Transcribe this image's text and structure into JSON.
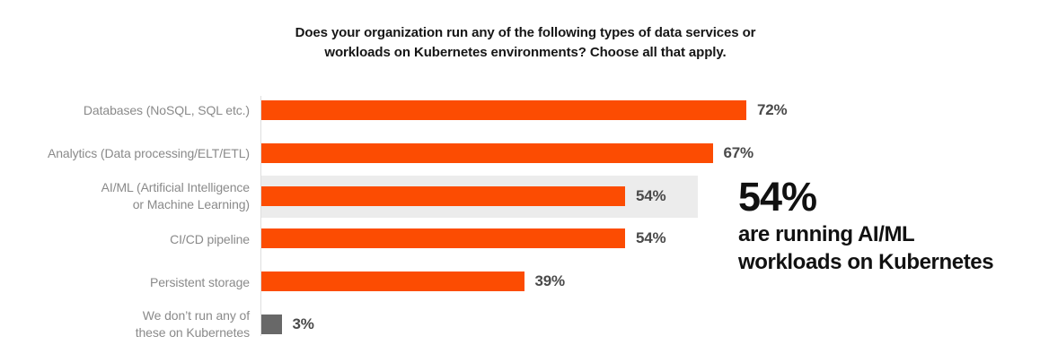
{
  "chart_data": {
    "type": "bar",
    "orientation": "horizontal",
    "title": "Does your organization run any of the following types of data services or workloads on Kubernetes environments? Choose all that apply.",
    "title_lines": [
      "Does your organization run any of the following types of data services or",
      "workloads on Kubernetes environments? Choose all that apply."
    ],
    "categories": [
      "Databases (NoSQL, SQL etc.)",
      "Analytics (Data processing/ELT/ETL)",
      "AI/ML (Artificial Intelligence or Machine Learning)",
      "CI/CD pipeline",
      "Persistent storage",
      "We don’t run any of these on Kubernetes"
    ],
    "label_lines": [
      [
        "Databases (NoSQL, SQL etc.)"
      ],
      [
        "Analytics (Data processing/ELT/ETL)"
      ],
      [
        "AI/ML (Artificial Intelligence",
        "or Machine Learning)"
      ],
      [
        "CI/CD pipeline"
      ],
      [
        "Persistent storage"
      ],
      [
        "We don’t run any of",
        "these on Kubernetes"
      ]
    ],
    "values": [
      72,
      67,
      54,
      54,
      39,
      3
    ],
    "value_labels": [
      "72%",
      "67%",
      "54%",
      "54%",
      "39%",
      "3%"
    ],
    "unit": "%",
    "xlim": [
      0,
      75
    ],
    "grid": false,
    "legend": false,
    "highlighted_index": 2,
    "muted_index": 5,
    "colors": {
      "bar": "#FC4C02",
      "muted_bar": "#686868",
      "highlight_band": "#ECECEC",
      "axis_line": "#DEDEDE",
      "category_label": "#8A8A8A",
      "value_label": "#4A4A4A",
      "title_text": "#161616",
      "callout_text": "#111111"
    }
  },
  "callout": {
    "stat": "54%",
    "description": "are running AI/ML workloads on Kubernetes",
    "description_lines": [
      "are running AI/ML",
      "workloads on Kubernetes"
    ]
  }
}
